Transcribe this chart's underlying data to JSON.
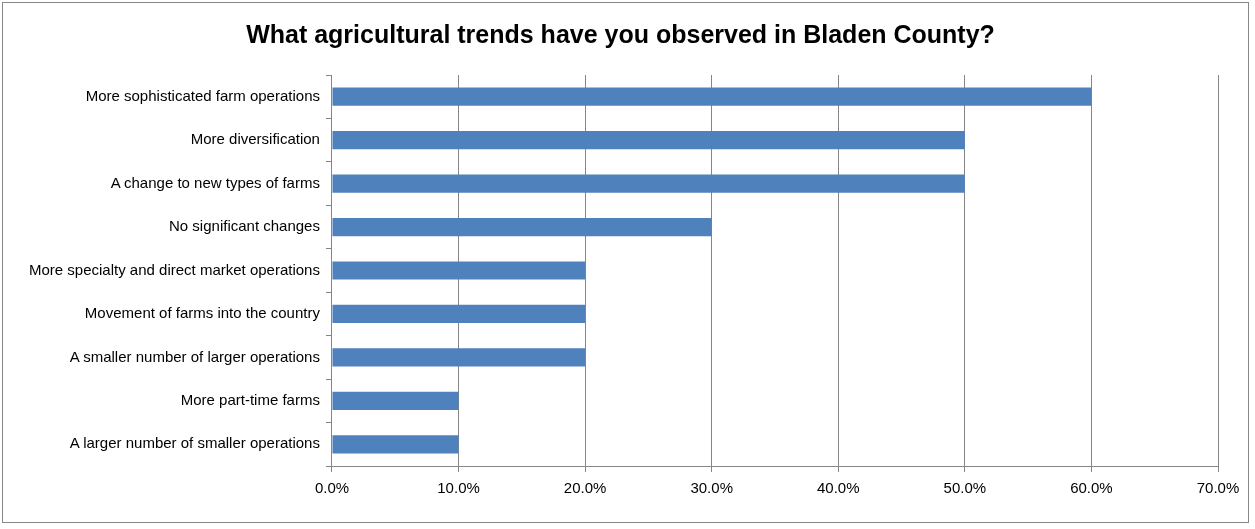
{
  "chart_data": {
    "type": "bar",
    "orientation": "horizontal",
    "title": "What agricultural trends have you observed in Bladen County?",
    "categories": [
      "More sophisticated farm operations",
      "More diversification",
      "A change to new types of farms",
      "No significant changes",
      "More specialty and direct market operations",
      "Movement of farms into the country",
      "A smaller number of larger operations",
      "More part-time farms",
      "A larger number of smaller operations"
    ],
    "values": [
      60,
      50,
      50,
      30,
      20,
      20,
      20,
      10,
      10
    ],
    "color": "#4f81bd",
    "xlim": [
      0,
      70
    ],
    "xticks": [
      {
        "value": 0,
        "label": "0.0%"
      },
      {
        "value": 10,
        "label": "10.0%"
      },
      {
        "value": 20,
        "label": "20.0%"
      },
      {
        "value": 30,
        "label": "30.0%"
      },
      {
        "value": 40,
        "label": "40.0%"
      },
      {
        "value": 50,
        "label": "50.0%"
      },
      {
        "value": 60,
        "label": "60.0%"
      },
      {
        "value": 70,
        "label": "70.0%"
      }
    ],
    "grid": "x",
    "legend": false
  }
}
